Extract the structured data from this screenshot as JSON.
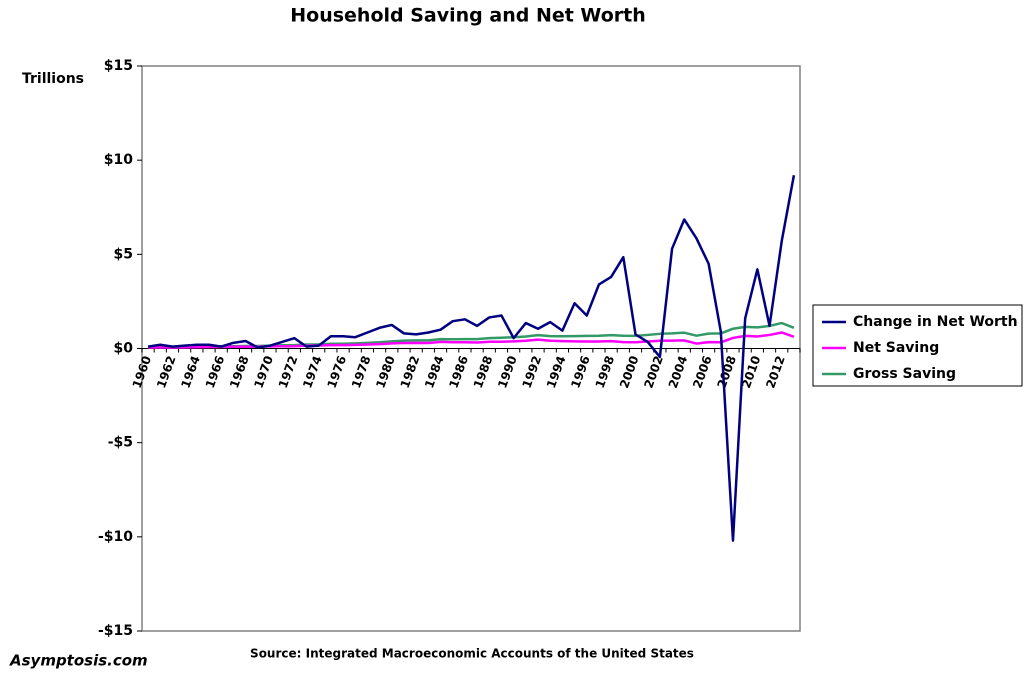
{
  "chart_data": {
    "type": "line",
    "title": "Household Saving and Net Worth",
    "y_label": "Trillions",
    "source": "Source: Integrated Macroeconomic Accounts of the United States",
    "watermark": "Asymptosis.com",
    "categories": [
      "1960",
      null,
      "1962",
      null,
      "1964",
      null,
      "1966",
      null,
      "1968",
      null,
      "1970",
      null,
      "1972",
      null,
      "1974",
      null,
      "1976",
      null,
      "1978",
      null,
      "1980",
      null,
      "1982",
      null,
      "1984",
      null,
      "1986",
      null,
      "1988",
      null,
      "1990",
      null,
      "1992",
      null,
      "1994",
      null,
      "1996",
      null,
      "1998",
      null,
      "2000",
      null,
      "2002",
      null,
      "2004",
      null,
      "2006",
      null,
      "2008",
      null,
      "2010",
      null,
      "2012",
      null
    ],
    "ylim": [
      -15,
      15
    ],
    "yticks": [
      {
        "value": -15,
        "label": "-$15"
      },
      {
        "value": -10,
        "label": "-$10"
      },
      {
        "value": -5,
        "label": "-$5"
      },
      {
        "value": 0,
        "label": "$0"
      },
      {
        "value": 5,
        "label": "$5"
      },
      {
        "value": 10,
        "label": "$10"
      },
      {
        "value": 15,
        "label": "$15"
      }
    ],
    "legend": "right",
    "series": [
      {
        "name": "Change in Net Worth",
        "color": "#000080",
        "values": [
          0.1,
          0.2,
          0.1,
          0.15,
          0.2,
          0.2,
          0.1,
          0.3,
          0.4,
          0.05,
          0.15,
          0.35,
          0.55,
          0.1,
          0.15,
          0.65,
          0.65,
          0.6,
          0.85,
          1.1,
          1.25,
          0.8,
          0.75,
          0.85,
          1.0,
          1.45,
          1.55,
          1.2,
          1.65,
          1.75,
          0.55,
          1.35,
          1.05,
          1.4,
          0.95,
          2.4,
          1.75,
          3.4,
          3.8,
          4.85,
          0.75,
          0.35,
          -0.45,
          5.3,
          6.85,
          5.85,
          4.5,
          0.9,
          -10.2,
          1.6,
          4.2,
          1.2,
          5.7,
          9.2
        ]
      },
      {
        "name": "Net Saving",
        "color": "#ff00ff",
        "values": [
          0.05,
          0.05,
          0.05,
          0.06,
          0.07,
          0.08,
          0.08,
          0.09,
          0.09,
          0.09,
          0.11,
          0.12,
          0.12,
          0.15,
          0.16,
          0.18,
          0.18,
          0.19,
          0.21,
          0.23,
          0.27,
          0.29,
          0.3,
          0.29,
          0.35,
          0.33,
          0.33,
          0.32,
          0.36,
          0.36,
          0.38,
          0.41,
          0.47,
          0.41,
          0.39,
          0.38,
          0.37,
          0.37,
          0.39,
          0.34,
          0.33,
          0.37,
          0.41,
          0.42,
          0.43,
          0.26,
          0.34,
          0.33,
          0.56,
          0.67,
          0.64,
          0.72,
          0.85,
          0.62
        ]
      },
      {
        "name": "Gross Saving",
        "color": "#339966",
        "values": [
          0.06,
          0.07,
          0.07,
          0.08,
          0.09,
          0.1,
          0.11,
          0.12,
          0.13,
          0.13,
          0.15,
          0.17,
          0.18,
          0.21,
          0.22,
          0.25,
          0.25,
          0.27,
          0.3,
          0.33,
          0.38,
          0.42,
          0.43,
          0.43,
          0.5,
          0.49,
          0.5,
          0.5,
          0.55,
          0.57,
          0.6,
          0.64,
          0.71,
          0.66,
          0.65,
          0.66,
          0.67,
          0.68,
          0.71,
          0.68,
          0.67,
          0.72,
          0.78,
          0.8,
          0.84,
          0.68,
          0.79,
          0.8,
          1.05,
          1.15,
          1.12,
          1.2,
          1.35,
          1.1
        ]
      }
    ]
  }
}
